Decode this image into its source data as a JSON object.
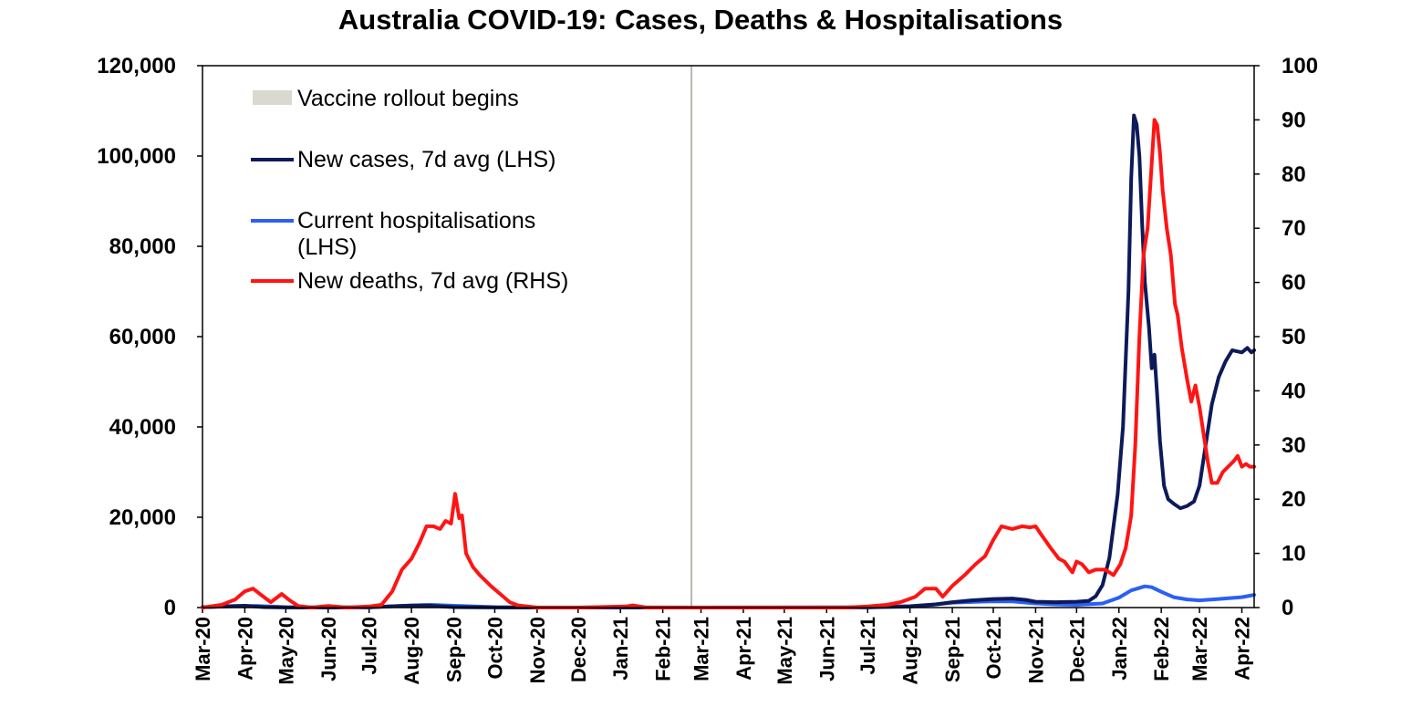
{
  "chart_data": {
    "type": "line",
    "title": "Australia COVID-19: Cases, Deaths & Hospitalisations",
    "y_left": {
      "lim": [
        0,
        120000
      ],
      "ticks": [
        "0",
        "20,000",
        "40,000",
        "60,000",
        "80,000",
        "100,000",
        "120,000"
      ],
      "tick_values": [
        0,
        20000,
        40000,
        60000,
        80000,
        100000,
        120000
      ]
    },
    "y_right": {
      "lim": [
        0,
        100
      ],
      "ticks": [
        "0",
        "10",
        "20",
        "30",
        "40",
        "50",
        "60",
        "70",
        "80",
        "90",
        "100"
      ],
      "tick_values": [
        0,
        10,
        20,
        30,
        40,
        50,
        60,
        70,
        80,
        90,
        100
      ]
    },
    "x_range": [
      "2020-03-01",
      "2022-04-10"
    ],
    "x_ticks": [
      {
        "date": "2020-03-01",
        "label": "Mar-20"
      },
      {
        "date": "2020-04-01",
        "label": "Apr-20"
      },
      {
        "date": "2020-05-01",
        "label": "May-20"
      },
      {
        "date": "2020-06-01",
        "label": "Jun-20"
      },
      {
        "date": "2020-07-01",
        "label": "Jul-20"
      },
      {
        "date": "2020-08-01",
        "label": "Aug-20"
      },
      {
        "date": "2020-09-01",
        "label": "Sep-20"
      },
      {
        "date": "2020-10-01",
        "label": "Oct-20"
      },
      {
        "date": "2020-11-01",
        "label": "Nov-20"
      },
      {
        "date": "2020-12-01",
        "label": "Dec-20"
      },
      {
        "date": "2021-01-01",
        "label": "Jan-21"
      },
      {
        "date": "2021-02-01",
        "label": "Feb-21"
      },
      {
        "date": "2021-03-01",
        "label": "Mar-21"
      },
      {
        "date": "2021-04-01",
        "label": "Apr-21"
      },
      {
        "date": "2021-05-01",
        "label": "May-21"
      },
      {
        "date": "2021-06-01",
        "label": "Jun-21"
      },
      {
        "date": "2021-07-01",
        "label": "Jul-21"
      },
      {
        "date": "2021-08-01",
        "label": "Aug-21"
      },
      {
        "date": "2021-09-01",
        "label": "Sep-21"
      },
      {
        "date": "2021-10-01",
        "label": "Oct-21"
      },
      {
        "date": "2021-11-01",
        "label": "Nov-21"
      },
      {
        "date": "2021-12-01",
        "label": "Dec-21"
      },
      {
        "date": "2022-01-01",
        "label": "Jan-22"
      },
      {
        "date": "2022-02-01",
        "label": "Feb-22"
      },
      {
        "date": "2022-03-01",
        "label": "Mar-22"
      },
      {
        "date": "2022-04-01",
        "label": "Apr-22"
      }
    ],
    "legend": {
      "placement": "top-left",
      "entries": [
        "Vaccine rollout begins",
        "New cases, 7d avg (LHS)",
        "Current hospitalisations (LHS)",
        "New deaths, 7d avg (RHS)"
      ]
    },
    "vaccine_rollout": {
      "label": "Vaccine rollout begins",
      "date": "2021-02-22",
      "color": "#b8b8b0",
      "legend_color": "#d9d9d0"
    },
    "grid": false,
    "series": [
      {
        "name": "New cases, 7d avg (LHS)",
        "axis": "left",
        "color": "#0d1a5a",
        "points": [
          [
            "2020-03-01",
            50
          ],
          [
            "2020-03-20",
            300
          ],
          [
            "2020-04-01",
            400
          ],
          [
            "2020-04-15",
            100
          ],
          [
            "2020-05-01",
            20
          ],
          [
            "2020-06-01",
            10
          ],
          [
            "2020-07-01",
            50
          ],
          [
            "2020-07-15",
            250
          ],
          [
            "2020-08-01",
            450
          ],
          [
            "2020-08-10",
            480
          ],
          [
            "2020-09-01",
            100
          ],
          [
            "2020-10-01",
            20
          ],
          [
            "2020-11-01",
            10
          ],
          [
            "2021-01-01",
            15
          ],
          [
            "2021-03-01",
            10
          ],
          [
            "2021-06-01",
            15
          ],
          [
            "2021-07-01",
            50
          ],
          [
            "2021-07-20",
            200
          ],
          [
            "2021-08-01",
            300
          ],
          [
            "2021-08-20",
            700
          ],
          [
            "2021-09-01",
            1200
          ],
          [
            "2021-09-15",
            1600
          ],
          [
            "2021-10-01",
            1900
          ],
          [
            "2021-10-15",
            2000
          ],
          [
            "2021-10-25",
            1700
          ],
          [
            "2021-11-01",
            1300
          ],
          [
            "2021-11-15",
            1200
          ],
          [
            "2021-12-01",
            1300
          ],
          [
            "2021-12-10",
            1500
          ],
          [
            "2021-12-15",
            2500
          ],
          [
            "2021-12-20",
            5000
          ],
          [
            "2021-12-25",
            11000
          ],
          [
            "2021-12-31",
            25000
          ],
          [
            "2022-01-04",
            40000
          ],
          [
            "2022-01-08",
            70000
          ],
          [
            "2022-01-10",
            95000
          ],
          [
            "2022-01-12",
            109000
          ],
          [
            "2022-01-14",
            107000
          ],
          [
            "2022-01-16",
            100000
          ],
          [
            "2022-01-18",
            85000
          ],
          [
            "2022-01-20",
            72000
          ],
          [
            "2022-01-23",
            62000
          ],
          [
            "2022-01-25",
            53000
          ],
          [
            "2022-01-27",
            56000
          ],
          [
            "2022-01-29",
            47000
          ],
          [
            "2022-01-31",
            37000
          ],
          [
            "2022-02-03",
            27000
          ],
          [
            "2022-02-06",
            24000
          ],
          [
            "2022-02-10",
            23000
          ],
          [
            "2022-02-15",
            22000
          ],
          [
            "2022-02-20",
            22500
          ],
          [
            "2022-02-25",
            23500
          ],
          [
            "2022-03-01",
            27000
          ],
          [
            "2022-03-05",
            35000
          ],
          [
            "2022-03-10",
            45000
          ],
          [
            "2022-03-15",
            51000
          ],
          [
            "2022-03-20",
            54500
          ],
          [
            "2022-03-25",
            57000
          ],
          [
            "2022-04-01",
            56500
          ],
          [
            "2022-04-05",
            57500
          ],
          [
            "2022-04-08",
            56500
          ],
          [
            "2022-04-10",
            57000
          ]
        ]
      },
      {
        "name": "Current hospitalisations (LHS)",
        "axis": "left",
        "color": "#2b5ff5",
        "points": [
          [
            "2020-03-01",
            100
          ],
          [
            "2020-03-25",
            300
          ],
          [
            "2020-04-10",
            350
          ],
          [
            "2020-05-01",
            100
          ],
          [
            "2020-06-01",
            50
          ],
          [
            "2020-07-01",
            50
          ],
          [
            "2020-07-20",
            300
          ],
          [
            "2020-08-15",
            600
          ],
          [
            "2020-09-01",
            400
          ],
          [
            "2020-10-01",
            100
          ],
          [
            "2020-11-01",
            20
          ],
          [
            "2021-01-01",
            20
          ],
          [
            "2021-03-01",
            20
          ],
          [
            "2021-07-01",
            50
          ],
          [
            "2021-08-01",
            200
          ],
          [
            "2021-08-20",
            700
          ],
          [
            "2021-09-01",
            1100
          ],
          [
            "2021-09-20",
            1300
          ],
          [
            "2021-10-01",
            1400
          ],
          [
            "2021-10-15",
            1350
          ],
          [
            "2021-11-01",
            900
          ],
          [
            "2021-11-15",
            700
          ],
          [
            "2021-12-01",
            600
          ],
          [
            "2021-12-20",
            900
          ],
          [
            "2022-01-01",
            2200
          ],
          [
            "2022-01-10",
            3800
          ],
          [
            "2022-01-20",
            4700
          ],
          [
            "2022-01-25",
            4500
          ],
          [
            "2022-02-01",
            3500
          ],
          [
            "2022-02-10",
            2300
          ],
          [
            "2022-02-20",
            1800
          ],
          [
            "2022-03-01",
            1600
          ],
          [
            "2022-03-15",
            1900
          ],
          [
            "2022-04-01",
            2300
          ],
          [
            "2022-04-10",
            2800
          ]
        ]
      },
      {
        "name": "New deaths, 7d avg (RHS)",
        "axis": "right",
        "color": "#ff1414",
        "points": [
          [
            "2020-03-01",
            0
          ],
          [
            "2020-03-15",
            0.5
          ],
          [
            "2020-03-25",
            1.5
          ],
          [
            "2020-04-01",
            3
          ],
          [
            "2020-04-07",
            3.5
          ],
          [
            "2020-04-12",
            2.5
          ],
          [
            "2020-04-20",
            1
          ],
          [
            "2020-04-28",
            2.5
          ],
          [
            "2020-05-03",
            1.5
          ],
          [
            "2020-05-10",
            0.3
          ],
          [
            "2020-05-20",
            0
          ],
          [
            "2020-06-01",
            0.3
          ],
          [
            "2020-06-15",
            0
          ],
          [
            "2020-07-01",
            0.2
          ],
          [
            "2020-07-10",
            0.5
          ],
          [
            "2020-07-18",
            3
          ],
          [
            "2020-07-25",
            7
          ],
          [
            "2020-08-01",
            9
          ],
          [
            "2020-08-07",
            12
          ],
          [
            "2020-08-12",
            15
          ],
          [
            "2020-08-17",
            15
          ],
          [
            "2020-08-22",
            14.5
          ],
          [
            "2020-08-26",
            16
          ],
          [
            "2020-08-30",
            15.5
          ],
          [
            "2020-09-02",
            21
          ],
          [
            "2020-09-05",
            16.5
          ],
          [
            "2020-09-07",
            17
          ],
          [
            "2020-09-10",
            10
          ],
          [
            "2020-09-15",
            7.5
          ],
          [
            "2020-09-20",
            6
          ],
          [
            "2020-09-28",
            4
          ],
          [
            "2020-10-05",
            2.5
          ],
          [
            "2020-10-12",
            1
          ],
          [
            "2020-10-18",
            0.4
          ],
          [
            "2020-11-01",
            0
          ],
          [
            "2020-12-01",
            0
          ],
          [
            "2021-01-05",
            0.2
          ],
          [
            "2021-01-10",
            0.4
          ],
          [
            "2021-01-20",
            0
          ],
          [
            "2021-03-01",
            0
          ],
          [
            "2021-05-01",
            0
          ],
          [
            "2021-06-15",
            0
          ],
          [
            "2021-07-01",
            0.2
          ],
          [
            "2021-07-15",
            0.5
          ],
          [
            "2021-07-25",
            1
          ],
          [
            "2021-08-05",
            2
          ],
          [
            "2021-08-12",
            3.5
          ],
          [
            "2021-08-20",
            3.5
          ],
          [
            "2021-08-25",
            2
          ],
          [
            "2021-09-01",
            4
          ],
          [
            "2021-09-10",
            6
          ],
          [
            "2021-09-18",
            8
          ],
          [
            "2021-09-25",
            9.5
          ],
          [
            "2021-10-01",
            12.5
          ],
          [
            "2021-10-07",
            15
          ],
          [
            "2021-10-15",
            14.5
          ],
          [
            "2021-10-22",
            15
          ],
          [
            "2021-10-28",
            14.8
          ],
          [
            "2021-11-01",
            15
          ],
          [
            "2021-11-05",
            13.5
          ],
          [
            "2021-11-12",
            11
          ],
          [
            "2021-11-18",
            9
          ],
          [
            "2021-11-22",
            8.5
          ],
          [
            "2021-11-28",
            6.5
          ],
          [
            "2021-12-01",
            8.5
          ],
          [
            "2021-12-05",
            8
          ],
          [
            "2021-12-10",
            6.5
          ],
          [
            "2021-12-15",
            7
          ],
          [
            "2021-12-22",
            7
          ],
          [
            "2021-12-28",
            6
          ],
          [
            "2022-01-02",
            8
          ],
          [
            "2022-01-06",
            11
          ],
          [
            "2022-01-10",
            17
          ],
          [
            "2022-01-13",
            30
          ],
          [
            "2022-01-16",
            50
          ],
          [
            "2022-01-19",
            65
          ],
          [
            "2022-01-22",
            70
          ],
          [
            "2022-01-25",
            82
          ],
          [
            "2022-01-27",
            90
          ],
          [
            "2022-01-29",
            89
          ],
          [
            "2022-01-31",
            84
          ],
          [
            "2022-02-02",
            77
          ],
          [
            "2022-02-05",
            70
          ],
          [
            "2022-02-08",
            65
          ],
          [
            "2022-02-11",
            56
          ],
          [
            "2022-02-13",
            54
          ],
          [
            "2022-02-16",
            48
          ],
          [
            "2022-02-20",
            42
          ],
          [
            "2022-02-23",
            38
          ],
          [
            "2022-02-26",
            41
          ],
          [
            "2022-03-01",
            37
          ],
          [
            "2022-03-04",
            32
          ],
          [
            "2022-03-07",
            27
          ],
          [
            "2022-03-10",
            23
          ],
          [
            "2022-03-14",
            23
          ],
          [
            "2022-03-18",
            25
          ],
          [
            "2022-03-22",
            26
          ],
          [
            "2022-03-26",
            27
          ],
          [
            "2022-03-29",
            28
          ],
          [
            "2022-04-01",
            26
          ],
          [
            "2022-04-04",
            26.5
          ],
          [
            "2022-04-07",
            26
          ],
          [
            "2022-04-10",
            26
          ]
        ]
      }
    ]
  }
}
